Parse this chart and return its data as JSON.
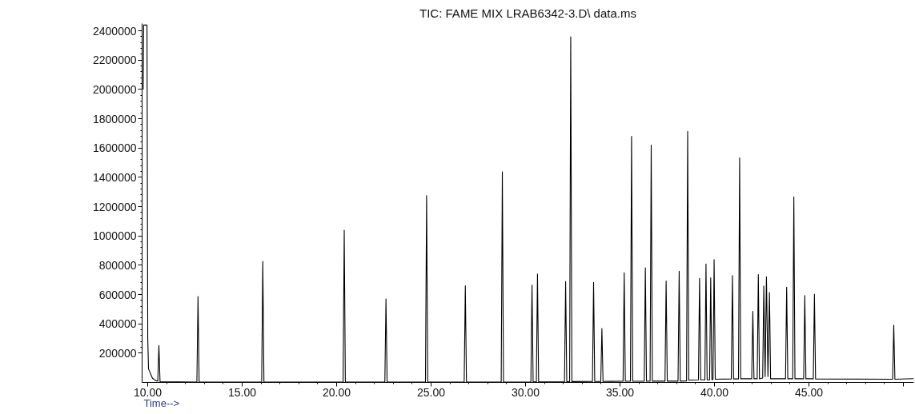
{
  "chart_data": {
    "type": "line",
    "title": "TIC: FAME MIX LRAB6342-3.D\\ data.ms",
    "xlabel": "Time-->",
    "xlim": [
      9.7,
      50.55
    ],
    "ylim": [
      0,
      2450000
    ],
    "xticks": [
      {
        "value": 10,
        "label": "10.00"
      },
      {
        "value": 15,
        "label": "15.00"
      },
      {
        "value": 20,
        "label": "20.00"
      },
      {
        "value": 25,
        "label": "25.00"
      },
      {
        "value": 30,
        "label": "30.00"
      },
      {
        "value": 35,
        "label": "35.00"
      },
      {
        "value": 40,
        "label": "40.00"
      },
      {
        "value": 45,
        "label": "45.00"
      },
      {
        "value": 50,
        "label": null
      }
    ],
    "yticks": [
      200000,
      400000,
      600000,
      800000,
      1000000,
      1200000,
      1400000,
      1600000,
      1800000,
      2000000,
      2200000,
      2400000
    ],
    "grid": false,
    "marker": "none",
    "line_style": "solid",
    "series": [
      {
        "color": "#000000",
        "x": [
          9.76,
          9.78,
          9.96,
          10.0,
          10.04,
          10.25,
          10.45,
          10.53,
          10.59,
          10.65,
          12.6,
          12.66,
          12.72,
          16.03,
          16.09,
          16.15,
          20.34,
          20.4,
          20.46,
          22.55,
          22.61,
          22.67,
          24.7,
          24.76,
          24.82,
          26.75,
          26.81,
          26.87,
          28.71,
          28.77,
          28.83,
          30.28,
          30.34,
          30.4,
          30.57,
          30.63,
          30.69,
          32.06,
          32.12,
          32.18,
          32.33,
          32.39,
          32.45,
          33.54,
          33.6,
          33.66,
          33.98,
          34.04,
          34.1,
          35.16,
          35.22,
          35.28,
          35.55,
          35.61,
          35.67,
          36.28,
          36.34,
          36.4,
          36.59,
          36.65,
          36.71,
          37.38,
          37.44,
          37.5,
          38.07,
          38.13,
          38.19,
          38.52,
          38.58,
          38.64,
          39.15,
          39.21,
          39.27,
          39.49,
          39.55,
          39.61,
          39.74,
          39.8,
          39.86,
          39.92,
          39.98,
          40.04,
          40.89,
          40.95,
          41.01,
          41.27,
          41.33,
          41.39,
          41.97,
          42.03,
          42.09,
          42.26,
          42.32,
          42.38,
          42.55,
          42.61,
          42.68,
          42.75,
          42.83,
          42.91,
          42.97,
          43.76,
          43.82,
          43.88,
          44.14,
          44.2,
          44.26,
          44.72,
          44.78,
          44.84,
          45.23,
          45.29,
          45.35,
          49.43,
          49.49,
          49.55,
          50.55
        ],
        "values": [
          2000000,
          2440000,
          2440000,
          300000,
          92000,
          29000,
          10000,
          10000,
          252000,
          5000,
          2000,
          586000,
          2000,
          2000,
          827000,
          2000,
          2000,
          1039000,
          2000,
          2000,
          570000,
          2000,
          2000,
          1275000,
          2000,
          2000,
          660000,
          2000,
          2000,
          1438000,
          3000,
          4000,
          664000,
          4000,
          4000,
          740000,
          4000,
          5000,
          689000,
          5000,
          5000,
          2360000,
          6000,
          7000,
          683000,
          7000,
          7000,
          368000,
          7000,
          8000,
          749000,
          8000,
          8000,
          1680000,
          8000,
          8000,
          783000,
          8000,
          8000,
          1620000,
          9000,
          9000,
          693000,
          9000,
          9000,
          759000,
          9000,
          10000,
          1714000,
          15000,
          18000,
          711000,
          18000,
          18000,
          809000,
          18000,
          18000,
          715000,
          20000,
          20000,
          838000,
          22000,
          24000,
          730000,
          24000,
          24000,
          1533000,
          25000,
          25000,
          485000,
          25000,
          25000,
          736000,
          25000,
          30000,
          659000,
          40000,
          721000,
          40000,
          613000,
          25000,
          25000,
          651000,
          25000,
          25000,
          1267000,
          25000,
          25000,
          593000,
          25000,
          25000,
          602000,
          24000,
          22000,
          391000,
          22000,
          26000
        ]
      }
    ]
  }
}
